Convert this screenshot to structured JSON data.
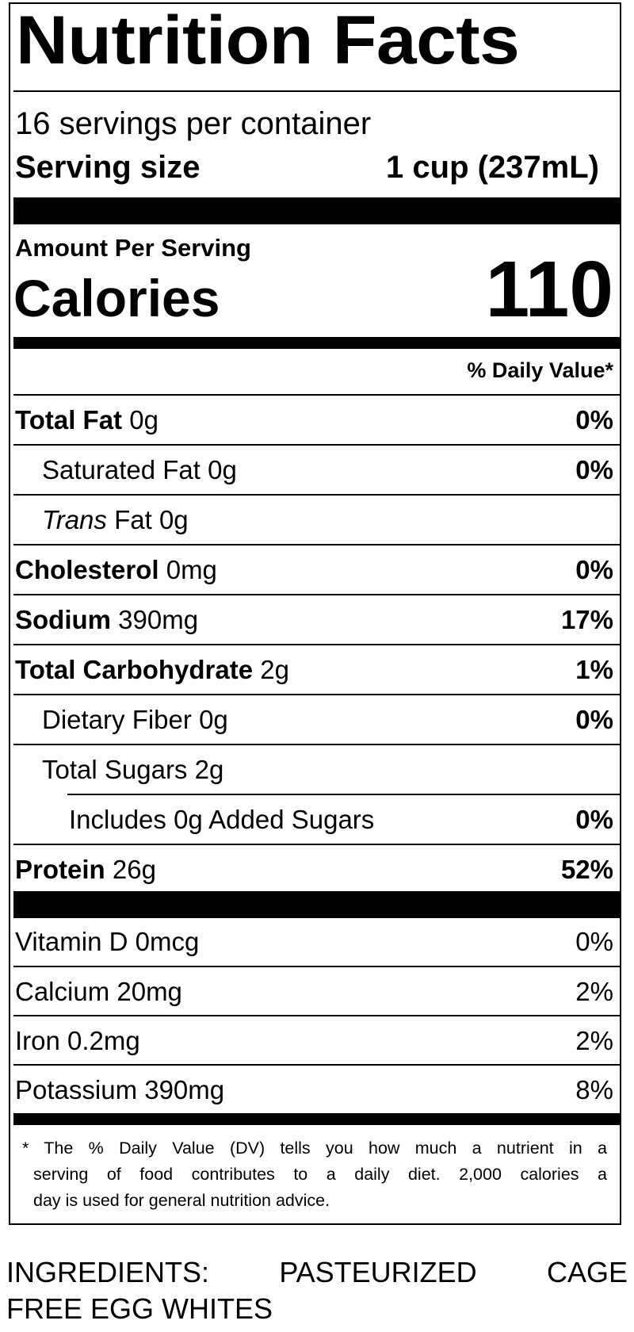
{
  "label": {
    "title": "Nutrition Facts",
    "servings_per_container": "16 servings per container",
    "serving_size_label": "Serving size",
    "serving_size_value": "1 cup (237mL)",
    "amount_per_serving": "Amount Per Serving",
    "calories_label": "Calories",
    "calories_value": "110",
    "daily_value_header": "% Daily Value*",
    "nutrients": [
      {
        "name": "Total Fat",
        "amount": "0g",
        "dv": "0%"
      },
      {
        "name": "Saturated Fat",
        "amount": "0g",
        "dv": "0%"
      },
      {
        "name_italic": "Trans",
        "name": "Fat",
        "amount": "0g",
        "dv": ""
      },
      {
        "name": "Cholesterol",
        "amount": "0mg",
        "dv": "0%"
      },
      {
        "name": "Sodium",
        "amount": "390mg",
        "dv": "17%"
      },
      {
        "name": "Total Carbohydrate",
        "amount": "2g",
        "dv": "1%"
      },
      {
        "name": "Dietary Fiber",
        "amount": "0g",
        "dv": "0%"
      },
      {
        "name": "Total Sugars",
        "amount": "2g",
        "dv": ""
      },
      {
        "name": "Includes 0g Added Sugars",
        "amount": "",
        "dv": "0%"
      },
      {
        "name": "Protein",
        "amount": "26g",
        "dv": "52%"
      }
    ],
    "vitamins": [
      {
        "name": "Vitamin D 0mcg",
        "dv": "0%"
      },
      {
        "name": "Calcium 20mg",
        "dv": "2%"
      },
      {
        "name": "Iron 0.2mg",
        "dv": "2%"
      },
      {
        "name": "Potassium 390mg",
        "dv": "8%"
      }
    ],
    "footnote_lines": [
      "* The % Daily Value (DV) tells you how much a nutrient in a",
      "serving of food contributes to a daily diet. 2,000 calories a",
      "day is used for general nutrition advice."
    ]
  },
  "ingredients_lines": [
    "INGREDIENTS: PASTEURIZED CAGE",
    "FREE EGG WHITES"
  ]
}
